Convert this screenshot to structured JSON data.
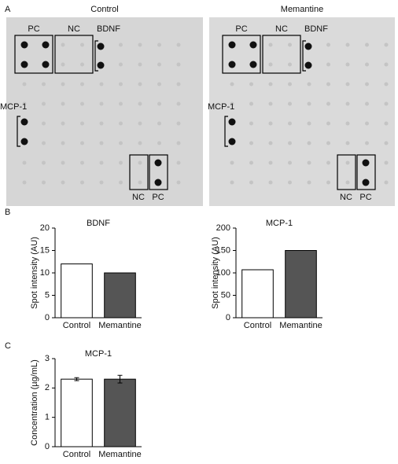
{
  "figure": {
    "panel_labels": [
      "A",
      "B",
      "C"
    ],
    "blots": [
      {
        "title": "Control",
        "spot_labels": [
          "PC",
          "NC",
          "BDNF",
          "MCP-1",
          "NC",
          "PC"
        ]
      },
      {
        "title": "Memantine",
        "spot_labels": [
          "PC",
          "NC",
          "BDNF",
          "MCP-1",
          "NC",
          "PC"
        ]
      }
    ]
  },
  "chart_data": [
    {
      "type": "bar",
      "title": "BDNF",
      "y_label": "Spot intensity (AU)",
      "categories": [
        "Control",
        "Memantine"
      ],
      "values": [
        12,
        10
      ],
      "colors": [
        "#ffffff",
        "#555555"
      ],
      "ylim": [
        0,
        20
      ],
      "yticks": [
        0,
        5,
        10,
        15,
        20
      ]
    },
    {
      "type": "bar",
      "title": "MCP-1",
      "y_label": "Spot intensity (AU)",
      "categories": [
        "Control",
        "Memantine"
      ],
      "values": [
        107,
        150
      ],
      "colors": [
        "#ffffff",
        "#555555"
      ],
      "ylim": [
        0,
        200
      ],
      "yticks": [
        0,
        50,
        100,
        150,
        200
      ]
    },
    {
      "type": "bar",
      "title": "MCP-1",
      "y_label": "Concentration (µg/mL)",
      "categories": [
        "Control",
        "Memantine"
      ],
      "values": [
        2.3,
        2.3
      ],
      "errors": [
        0.05,
        0.13
      ],
      "colors": [
        "#ffffff",
        "#555555"
      ],
      "ylim": [
        0,
        3
      ],
      "yticks": [
        0,
        1,
        2,
        3
      ]
    }
  ]
}
